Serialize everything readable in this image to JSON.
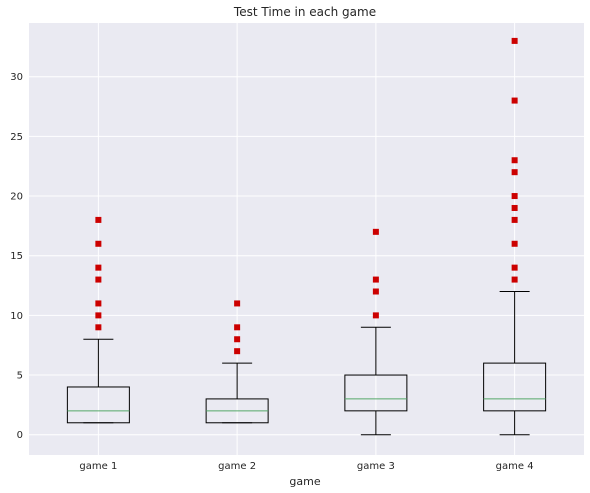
{
  "chart_data": {
    "type": "boxplot",
    "title": "Test Time in each game",
    "xlabel": "game",
    "ylabel": "",
    "categories": [
      "game 1",
      "game 2",
      "game 3",
      "game 4"
    ],
    "ylim": [
      -1.7,
      34.5
    ],
    "yticks": [
      0,
      5,
      10,
      15,
      20,
      25,
      30
    ],
    "grid": true,
    "colors": {
      "background": "#eaeaf2",
      "grid": "#ffffff",
      "box": "#000000",
      "median": "#55a868",
      "outlier": "#cc0000"
    },
    "boxes": [
      {
        "name": "game 1",
        "whisker_low": 1,
        "q1": 1,
        "median": 2,
        "q3": 4,
        "whisker_high": 8,
        "outliers": [
          9,
          10,
          11,
          13,
          14,
          16,
          18
        ]
      },
      {
        "name": "game 2",
        "whisker_low": 1,
        "q1": 1,
        "median": 2,
        "q3": 3,
        "whisker_high": 6,
        "outliers": [
          7,
          8,
          9,
          11
        ]
      },
      {
        "name": "game 3",
        "whisker_low": 0,
        "q1": 2,
        "median": 3,
        "q3": 5,
        "whisker_high": 9,
        "outliers": [
          10,
          12,
          13,
          17
        ]
      },
      {
        "name": "game 4",
        "whisker_low": 0,
        "q1": 2,
        "median": 3,
        "q3": 6,
        "whisker_high": 12,
        "outliers": [
          13,
          14,
          16,
          18,
          19,
          20,
          22,
          23,
          28,
          33
        ]
      }
    ]
  }
}
